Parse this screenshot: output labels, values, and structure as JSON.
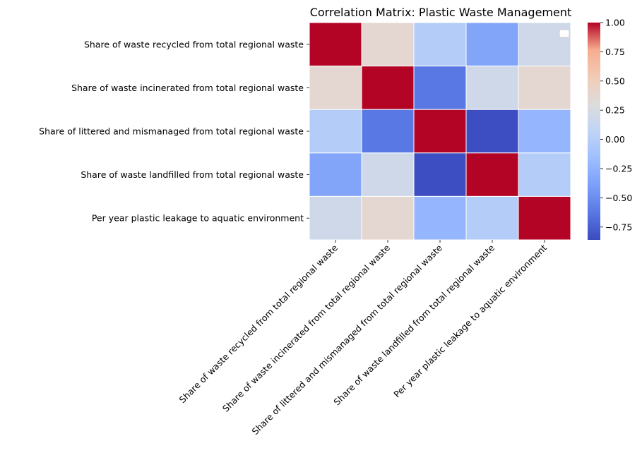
{
  "chart_data": {
    "type": "heatmap",
    "title": "Correlation Matrix: Plastic Waste Management",
    "xlabel": "",
    "ylabel": "",
    "categories": [
      "Share of waste recycled from total regional waste",
      "Share of waste incinerated from total regional waste",
      "Share of littered and mismanaged from total regional waste",
      "Share of waste landfilled from total regional waste",
      "Per year plastic leakage to aquatic environment"
    ],
    "matrix": [
      [
        1.0,
        0.38,
        -0.01,
        -0.35,
        0.18
      ],
      [
        0.38,
        1.0,
        -0.62,
        0.18,
        0.38
      ],
      [
        -0.01,
        -0.62,
        1.0,
        -0.85,
        -0.22
      ],
      [
        -0.35,
        0.18,
        -0.85,
        1.0,
        -0.01
      ],
      [
        0.18,
        0.38,
        -0.22,
        -0.01,
        1.0
      ]
    ],
    "colormap": "coolwarm",
    "vmin": -0.86,
    "vmax": 1.0,
    "colorbar_ticks": [
      "1.00",
      "0.75",
      "0.50",
      "0.25",
      "0.00",
      "−0.25",
      "−0.50",
      "−0.75"
    ],
    "colorbar_tick_values": [
      1.0,
      0.75,
      0.5,
      0.25,
      0.0,
      -0.25,
      -0.5,
      -0.75
    ],
    "gridline_color": "#ffffff",
    "legend": "top-right (empty)",
    "grid": false
  }
}
